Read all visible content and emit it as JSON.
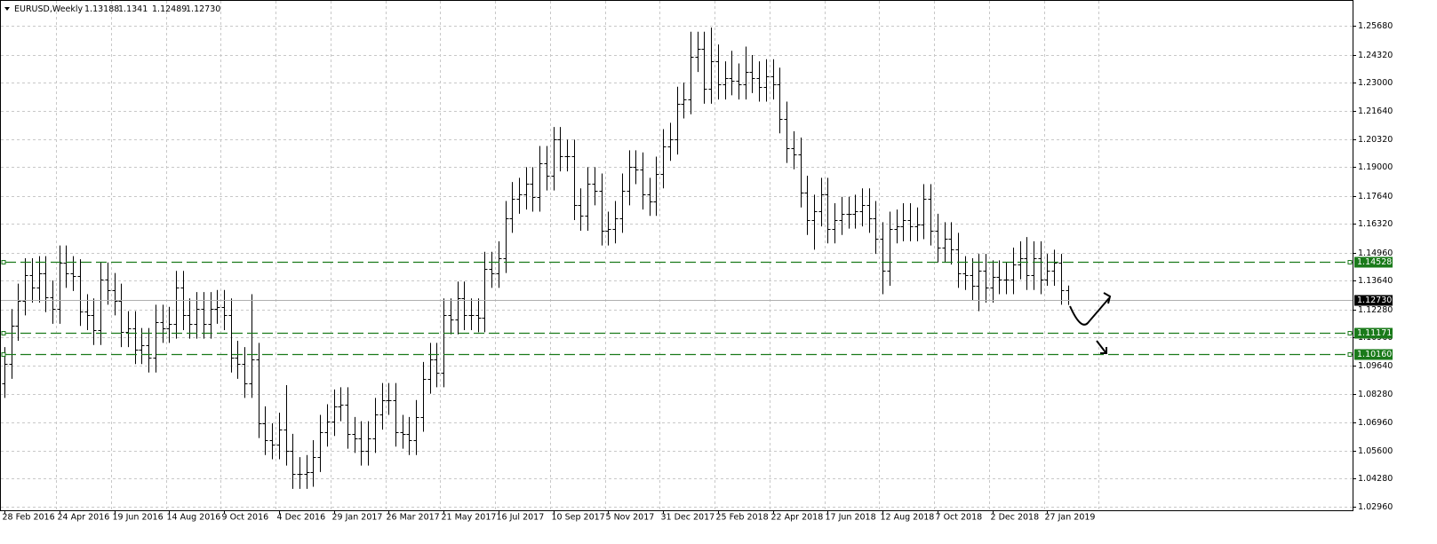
{
  "chart_data": {
    "type": "ohlc",
    "title": "EURUSD,Weekly",
    "categories": [
      "28 Feb 2016",
      null,
      null,
      null,
      null,
      null,
      null,
      null,
      "24 Apr 2016",
      null,
      null,
      null,
      null,
      null,
      null,
      null,
      "19 Jun 2016",
      null,
      null,
      null,
      null,
      null,
      null,
      null,
      "14 Aug 2016",
      null,
      null,
      null,
      null,
      null,
      null,
      null,
      "9 Oct 2016",
      null,
      null,
      null,
      null,
      null,
      null,
      null,
      "4 Dec 2016",
      null,
      null,
      null,
      null,
      null,
      null,
      null,
      "29 Jan 2017",
      null,
      null,
      null,
      null,
      null,
      null,
      null,
      "26 Mar 2017",
      null,
      null,
      null,
      null,
      null,
      null,
      null,
      "21 May 2017",
      null,
      null,
      null,
      null,
      null,
      null,
      null,
      "16 Jul 2017",
      null,
      null,
      null,
      null,
      null,
      null,
      null,
      "10 Sep 2017",
      null,
      null,
      null,
      null,
      null,
      null,
      null,
      "5 Nov 2017",
      null,
      null,
      null,
      null,
      null,
      null,
      null,
      "31 Dec 2017",
      null,
      null,
      null,
      null,
      null,
      null,
      null,
      "25 Feb 2018",
      null,
      null,
      null,
      null,
      null,
      null,
      null,
      "22 Apr 2018",
      null,
      null,
      null,
      null,
      null,
      null,
      null,
      "17 Jun 2018",
      null,
      null,
      null,
      null,
      null,
      null,
      null,
      "12 Aug 2018",
      null,
      null,
      null,
      null,
      null,
      null,
      null,
      "7 Oct 2018",
      null,
      null,
      null,
      null,
      null,
      null,
      null,
      "2 Dec 2018",
      null,
      null,
      null,
      null,
      null,
      null,
      null,
      "27 Jan 2019",
      null,
      null,
      null
    ],
    "open": [
      1.088,
      1.097,
      1.115,
      1.127,
      1.139,
      1.133,
      1.14,
      1.1285,
      1.123,
      1.145,
      1.14,
      1.1385,
      1.122,
      1.12,
      1.113,
      1.137,
      1.132,
      1.127,
      1.112,
      1.114,
      1.104,
      1.106,
      1.1,
      1.117,
      1.114,
      1.116,
      1.133,
      1.12,
      1.116,
      1.123,
      1.116,
      1.123,
      1.124,
      1.12,
      1.1,
      1.097,
      1.088,
      1.099,
      1.069,
      1.061,
      1.059,
      1.066,
      1.056,
      1.045,
      1.045,
      1.046,
      1.053,
      1.065,
      1.07,
      1.077,
      1.078,
      1.064,
      1.062,
      1.056,
      1.062,
      1.073,
      1.08,
      1.08,
      1.065,
      1.064,
      1.061,
      1.072,
      1.09,
      1.099,
      1.093,
      1.12,
      1.118,
      1.128,
      1.12,
      1.12,
      1.119,
      1.142,
      1.14,
      1.147,
      1.166,
      1.175,
      1.177,
      1.182,
      1.176,
      1.192,
      1.186,
      1.203,
      1.195,
      1.195,
      1.172,
      1.167,
      1.182,
      1.179,
      1.16,
      1.161,
      1.166,
      1.179,
      1.19,
      1.189,
      1.177,
      1.174,
      1.187,
      1.2,
      1.203,
      1.22,
      1.222,
      1.242,
      1.246,
      1.227,
      1.24,
      1.229,
      1.232,
      1.231,
      1.229,
      1.235,
      1.232,
      1.228,
      1.233,
      1.229,
      1.213,
      1.199,
      1.196,
      1.178,
      1.165,
      1.169,
      1.177,
      1.161,
      1.165,
      1.168,
      1.168,
      1.169,
      1.172,
      1.166,
      1.156,
      1.141,
      1.161,
      1.162,
      1.165,
      1.162,
      1.163,
      1.175,
      1.16,
      1.152,
      1.156,
      1.151,
      1.14,
      1.139,
      1.134,
      1.141,
      1.133,
      1.138,
      1.137,
      1.137,
      1.144,
      1.147,
      1.139,
      1.147,
      1.137,
      1.141,
      1.145,
      1.13188
    ],
    "high": [
      1.105,
      1.123,
      1.135,
      1.147,
      1.147,
      1.148,
      1.148,
      1.1365,
      1.153,
      1.153,
      1.148,
      1.1465,
      1.13,
      1.128,
      1.145,
      1.145,
      1.14,
      1.135,
      1.122,
      1.122,
      1.114,
      1.114,
      1.125,
      1.125,
      1.124,
      1.141,
      1.141,
      1.128,
      1.131,
      1.131,
      1.131,
      1.132,
      1.132,
      1.128,
      1.108,
      1.105,
      1.13,
      1.107,
      1.077,
      1.069,
      1.074,
      1.087,
      1.064,
      1.053,
      1.054,
      1.061,
      1.073,
      1.078,
      1.085,
      1.086,
      1.086,
      1.072,
      1.07,
      1.07,
      1.081,
      1.088,
      1.088,
      1.088,
      1.073,
      1.072,
      1.08,
      1.098,
      1.107,
      1.107,
      1.128,
      1.128,
      1.136,
      1.136,
      1.128,
      1.128,
      1.15,
      1.15,
      1.155,
      1.174,
      1.183,
      1.185,
      1.19,
      1.19,
      1.2,
      1.2,
      1.209,
      1.209,
      1.203,
      1.203,
      1.18,
      1.19,
      1.19,
      1.187,
      1.169,
      1.174,
      1.187,
      1.198,
      1.198,
      1.197,
      1.185,
      1.195,
      1.208,
      1.211,
      1.228,
      1.23,
      1.254,
      1.254,
      1.254,
      1.256,
      1.248,
      1.24,
      1.245,
      1.239,
      1.247,
      1.243,
      1.24,
      1.241,
      1.241,
      1.237,
      1.221,
      1.207,
      1.204,
      1.186,
      1.177,
      1.185,
      1.185,
      1.173,
      1.176,
      1.176,
      1.177,
      1.18,
      1.18,
      1.174,
      1.164,
      1.169,
      1.17,
      1.173,
      1.173,
      1.171,
      1.182,
      1.182,
      1.168,
      1.164,
      1.164,
      1.159,
      1.148,
      1.147,
      1.149,
      1.149,
      1.146,
      1.146,
      1.145,
      1.152,
      1.155,
      1.157,
      1.155,
      1.155,
      1.149,
      1.151,
      1.149,
      1.1341
    ],
    "low": [
      1.081,
      1.09,
      1.108,
      1.12,
      1.126,
      1.126,
      1.1215,
      1.116,
      1.116,
      1.133,
      1.1315,
      1.115,
      1.113,
      1.106,
      1.106,
      1.125,
      1.12,
      1.105,
      1.105,
      1.097,
      1.097,
      1.093,
      1.093,
      1.107,
      1.107,
      1.109,
      1.113,
      1.109,
      1.109,
      1.109,
      1.109,
      1.116,
      1.113,
      1.093,
      1.09,
      1.081,
      1.081,
      1.062,
      1.054,
      1.052,
      1.052,
      1.049,
      1.038,
      1.038,
      1.038,
      1.039,
      1.046,
      1.058,
      1.063,
      1.07,
      1.057,
      1.055,
      1.049,
      1.049,
      1.055,
      1.066,
      1.073,
      1.058,
      1.057,
      1.054,
      1.054,
      1.065,
      1.083,
      1.086,
      1.086,
      1.111,
      1.111,
      1.113,
      1.113,
      1.112,
      1.112,
      1.133,
      1.133,
      1.14,
      1.159,
      1.168,
      1.17,
      1.169,
      1.169,
      1.179,
      1.179,
      1.188,
      1.188,
      1.165,
      1.16,
      1.16,
      1.172,
      1.153,
      1.153,
      1.154,
      1.159,
      1.172,
      1.182,
      1.17,
      1.167,
      1.167,
      1.18,
      1.193,
      1.196,
      1.213,
      1.215,
      1.235,
      1.22,
      1.22,
      1.222,
      1.222,
      1.224,
      1.222,
      1.222,
      1.225,
      1.221,
      1.221,
      1.222,
      1.206,
      1.192,
      1.189,
      1.171,
      1.158,
      1.151,
      1.162,
      1.154,
      1.154,
      1.158,
      1.161,
      1.161,
      1.162,
      1.159,
      1.149,
      1.13,
      1.134,
      1.154,
      1.155,
      1.155,
      1.155,
      1.156,
      1.153,
      1.145,
      1.145,
      1.144,
      1.133,
      1.132,
      1.127,
      1.122,
      1.126,
      1.126,
      1.13,
      1.13,
      1.13,
      1.137,
      1.132,
      1.132,
      1.13,
      1.134,
      1.134,
      1.125,
      1.12489
    ],
    "close": [
      1.097,
      1.115,
      1.127,
      1.139,
      1.133,
      1.14,
      1.1285,
      1.123,
      1.145,
      1.14,
      1.1385,
      1.122,
      1.12,
      1.113,
      1.137,
      1.132,
      1.127,
      1.112,
      1.114,
      1.104,
      1.106,
      1.1,
      1.117,
      1.114,
      1.116,
      1.133,
      1.12,
      1.116,
      1.123,
      1.116,
      1.123,
      1.124,
      1.12,
      1.1,
      1.097,
      1.088,
      1.099,
      1.069,
      1.061,
      1.059,
      1.066,
      1.056,
      1.045,
      1.045,
      1.046,
      1.053,
      1.065,
      1.07,
      1.077,
      1.078,
      1.064,
      1.062,
      1.056,
      1.062,
      1.073,
      1.08,
      1.08,
      1.065,
      1.064,
      1.061,
      1.072,
      1.09,
      1.099,
      1.093,
      1.12,
      1.118,
      1.128,
      1.12,
      1.12,
      1.119,
      1.142,
      1.14,
      1.147,
      1.166,
      1.175,
      1.177,
      1.182,
      1.176,
      1.192,
      1.186,
      1.203,
      1.195,
      1.195,
      1.172,
      1.167,
      1.182,
      1.179,
      1.16,
      1.161,
      1.166,
      1.179,
      1.19,
      1.189,
      1.177,
      1.174,
      1.187,
      1.2,
      1.203,
      1.22,
      1.222,
      1.242,
      1.246,
      1.227,
      1.24,
      1.229,
      1.232,
      1.231,
      1.229,
      1.235,
      1.232,
      1.228,
      1.233,
      1.229,
      1.213,
      1.199,
      1.196,
      1.178,
      1.165,
      1.169,
      1.177,
      1.161,
      1.165,
      1.168,
      1.168,
      1.169,
      1.172,
      1.166,
      1.156,
      1.141,
      1.161,
      1.162,
      1.165,
      1.162,
      1.163,
      1.175,
      1.16,
      1.152,
      1.156,
      1.151,
      1.14,
      1.139,
      1.134,
      1.141,
      1.133,
      1.138,
      1.137,
      1.137,
      1.144,
      1.147,
      1.139,
      1.147,
      1.137,
      1.141,
      1.145,
      1.132,
      1.1273
    ],
    "close_label": "1.12730",
    "color": "#000000",
    "ylim": [
      1.0279,
      1.2669
    ],
    "yticks": [
      {
        "value": 1.0296,
        "label": "1.02960"
      },
      {
        "value": 1.0428,
        "label": "1.04280"
      },
      {
        "value": 1.056,
        "label": "1.05600"
      },
      {
        "value": 1.0696,
        "label": "1.06960"
      },
      {
        "value": 1.0828,
        "label": "1.08280"
      },
      {
        "value": 1.0964,
        "label": "1.09640"
      },
      {
        "value": 1.1096,
        "label": "1.10960"
      },
      {
        "value": 1.1228,
        "label": "1.12280"
      },
      {
        "value": 1.1364,
        "label": "1.13640"
      },
      {
        "value": 1.1496,
        "label": "1.14960"
      },
      {
        "value": 1.1632,
        "label": "1.16320"
      },
      {
        "value": 1.1764,
        "label": "1.17640"
      },
      {
        "value": 1.19,
        "label": "1.19000"
      },
      {
        "value": 1.2032,
        "label": "1.20320"
      },
      {
        "value": 1.2164,
        "label": "1.21640"
      },
      {
        "value": 1.23,
        "label": "1.23000"
      },
      {
        "value": 1.2432,
        "label": "1.24320"
      },
      {
        "value": 1.2568,
        "label": "1.25680"
      }
    ],
    "levels": [
      1.14528,
      1.11171,
      {
        "value": 1.1016,
        "label": "1.10160"
      }
    ],
    "level_color": "#1a7a1a",
    "grid": true
  }
}
